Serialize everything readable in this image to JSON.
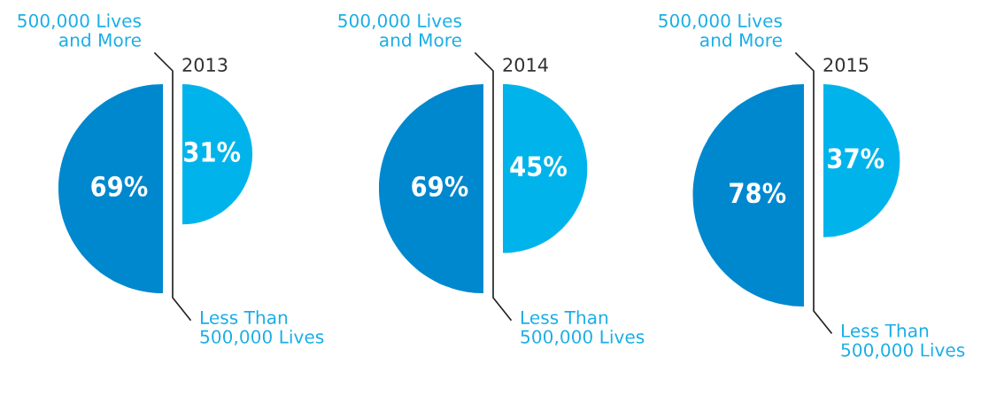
{
  "chart_data": {
    "type": "other",
    "categories": [
      "2013",
      "2014",
      "2015"
    ],
    "series": [
      {
        "name": "500,000 Lives and More",
        "color": "#0088cf",
        "values": [
          69,
          69,
          78
        ],
        "value_labels": [
          "69%",
          "69%",
          "78%"
        ]
      },
      {
        "name": "Less Than 500,000 Lives",
        "color": "#00b4eb",
        "values": [
          31,
          45,
          37
        ],
        "value_labels": [
          "31%",
          "45%",
          "37%"
        ]
      }
    ],
    "data_labels": true
  }
}
